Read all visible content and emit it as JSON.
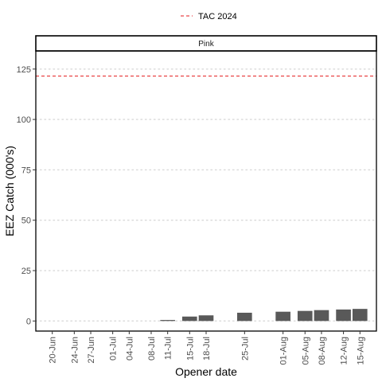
{
  "chart_data": {
    "type": "bar",
    "facet_label": "Pink",
    "xlabel": "Opener date",
    "ylabel": "EEZ Catch (000's)",
    "ylim": [
      -5,
      134
    ],
    "yticks": [
      0,
      25,
      50,
      75,
      100,
      125
    ],
    "x_tick_labels": [
      "20-Jun",
      "24-Jun",
      "27-Jun",
      "01-Jul",
      "04-Jul",
      "08-Jul",
      "11-Jul",
      "15-Jul",
      "18-Jul",
      "25-Jul",
      "01-Aug",
      "05-Aug",
      "08-Aug",
      "12-Aug",
      "15-Aug"
    ],
    "x_tick_days": [
      0,
      4,
      7,
      11,
      14,
      18,
      21,
      25,
      28,
      35,
      42,
      46,
      49,
      53,
      56
    ],
    "xlim_days": [
      -3,
      59
    ],
    "bars": [
      {
        "date": "11-Jul",
        "day": 21,
        "value": 0.5
      },
      {
        "date": "15-Jul",
        "day": 25,
        "value": 2.2
      },
      {
        "date": "18-Jul",
        "day": 28,
        "value": 2.8
      },
      {
        "date": "25-Jul",
        "day": 35,
        "value": 4.1
      },
      {
        "date": "01-Aug",
        "day": 42,
        "value": 4.6
      },
      {
        "date": "05-Aug",
        "day": 46,
        "value": 5.0
      },
      {
        "date": "08-Aug",
        "day": 49,
        "value": 5.4
      },
      {
        "date": "12-Aug",
        "day": 53,
        "value": 5.7
      },
      {
        "date": "15-Aug",
        "day": 56,
        "value": 6.0
      }
    ],
    "reference_line": {
      "name": "TAC 2024",
      "value": 121.5,
      "color": "#e41a1c",
      "style": "dashed"
    },
    "legend_position": "top",
    "grid": "major-y dotted",
    "bar_color": "#595959"
  }
}
